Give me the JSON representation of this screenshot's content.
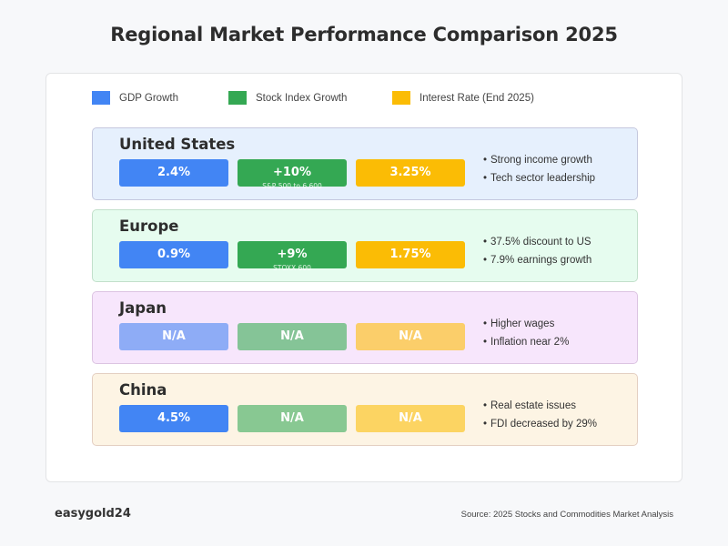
{
  "title": "Regional Market Performance Comparison 2025",
  "legend": [
    {
      "label": "GDP Growth",
      "color": "#4285f4"
    },
    {
      "label": "Stock Index Growth",
      "color": "#34a853"
    },
    {
      "label": "Interest Rate (End 2025)",
      "color": "#fbbc05"
    }
  ],
  "regions": [
    {
      "name": "United States",
      "bg": "#e6f0fd",
      "border": "#c5c8de",
      "gdp": {
        "value": "2.4%",
        "color": "#4285f4"
      },
      "stock": {
        "value": "+10%",
        "sub": "S&P 500 to 6,600",
        "color": "#34a853"
      },
      "rate": {
        "value": "3.25%",
        "color": "#fbbc05"
      },
      "notes": [
        "Strong income growth",
        "Tech sector leadership"
      ]
    },
    {
      "name": "Europe",
      "bg": "#e6fcef",
      "border": "#c2e0cb",
      "gdp": {
        "value": "0.9%",
        "color": "#4285f4"
      },
      "stock": {
        "value": "+9%",
        "sub": "STOXX 600",
        "color": "#34a853"
      },
      "rate": {
        "value": "1.75%",
        "color": "#fbbc05"
      },
      "notes": [
        "37.5% discount to US",
        "7.9% earnings growth"
      ]
    },
    {
      "name": "Japan",
      "bg": "#f7e6fc",
      "border": "#dcc4e2",
      "gdp": {
        "value": "N/A",
        "color": "#8eacf6"
      },
      "stock": {
        "value": "N/A",
        "color": "#85c497"
      },
      "rate": {
        "value": "N/A",
        "color": "#fbce6a"
      },
      "notes": [
        "Higher wages",
        "Inflation near 2%"
      ]
    },
    {
      "name": "China",
      "bg": "#fdf4e4",
      "border": "#e4cfc2",
      "gdp": {
        "value": "4.5%",
        "color": "#4285f4"
      },
      "stock": {
        "value": "N/A",
        "color": "#88c892"
      },
      "rate": {
        "value": "N/A",
        "color": "#fcd462"
      },
      "notes": [
        "Real estate issues",
        "FDI decreased by 29%"
      ]
    }
  ],
  "bullet_char": "•",
  "footer": {
    "brand": "easygold24",
    "source": "Source: 2025 Stocks and Commodities Market Analysis"
  }
}
